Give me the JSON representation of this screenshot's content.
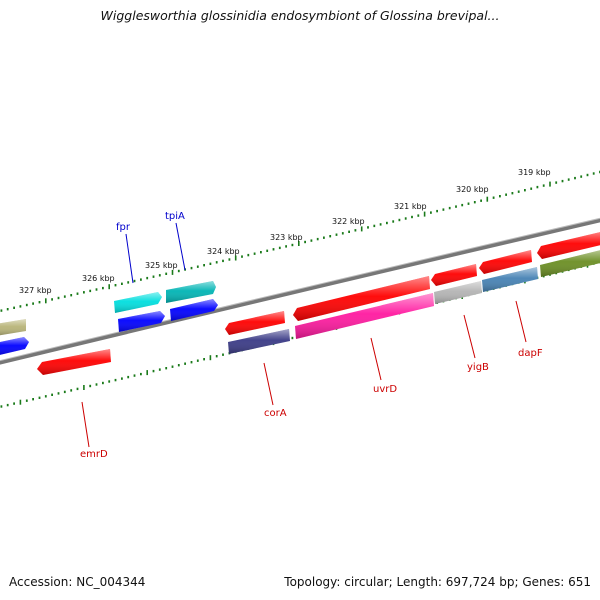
{
  "title": "Wigglesworthia glossinidia endosymbiont of Glossina brevipal...",
  "accession": "Accession: NC_004344",
  "summary": "Topology: circular; Length: 697,724 bp; Genes: 651",
  "scale_labels": [
    "319 kbp",
    "320 kbp",
    "321 kbp",
    "322 kbp",
    "323 kbp",
    "324 kbp",
    "325 kbp",
    "326 kbp",
    "327 kbp"
  ],
  "genes": [
    {
      "name": "fpr",
      "strand": "forward",
      "label_color": "#0000cc",
      "fill": "#00dede"
    },
    {
      "name": "tpiA",
      "strand": "forward",
      "label_color": "#0000cc",
      "fill": "#00b4b4"
    },
    {
      "name": "emrD",
      "strand": "reverse",
      "label_color": "#cc0000",
      "fill": "#ff0000"
    },
    {
      "name": "corA",
      "strand": "reverse",
      "label_color": "#cc0000",
      "fill": "#ff0000"
    },
    {
      "name": "uvrD",
      "strand": "reverse",
      "label_color": "#cc0000",
      "fill": "#ff0000"
    },
    {
      "name": "yigB",
      "strand": "reverse",
      "label_color": "#cc0000",
      "fill": "#ff0000"
    },
    {
      "name": "dapF",
      "strand": "reverse",
      "label_color": "#cc0000",
      "fill": "#ff0000"
    }
  ],
  "colors": {
    "backbone": "#777777",
    "tick": "#1a7a1a",
    "red": "#ff0000",
    "blue": "#0000ff",
    "cyan": "#00dede",
    "teal": "#00b4b4",
    "navy": "#3a3a86",
    "magenta": "#ff1aa0",
    "silver": "#b4b4b4",
    "steel": "#4682b4",
    "olive": "#6b8e23",
    "khaki": "#b8b478"
  }
}
